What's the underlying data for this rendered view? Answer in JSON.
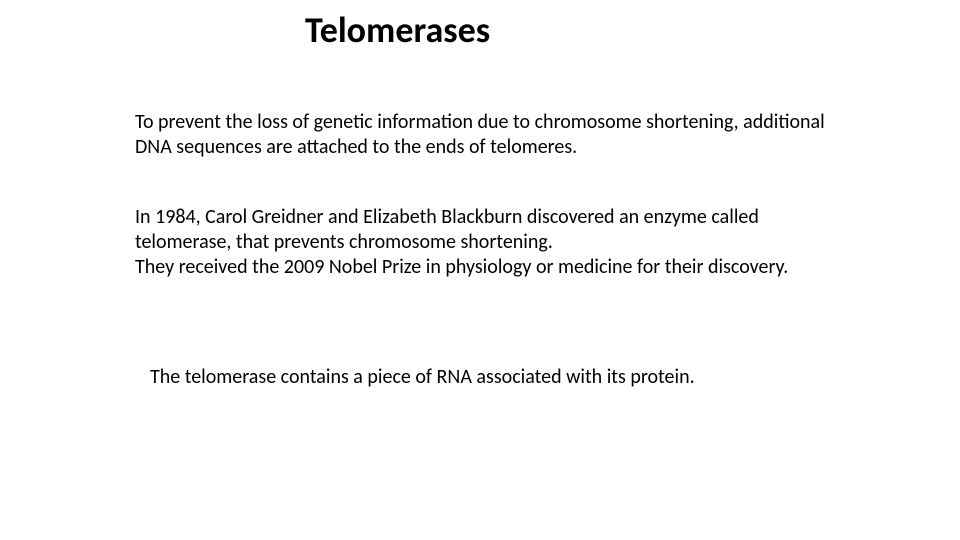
{
  "slide": {
    "title": "Telomerases",
    "para1": "To prevent the loss of genetic information due to chromosome shortening, additional DNA sequences are attached to the ends of telomeres.",
    "para2": "In 1984, Carol Greidner and Elizabeth Blackburn discovered an enzyme called telomerase, that prevents chromosome shortening.\nThey received the 2009 Nobel Prize in physiology or medicine for their discovery.",
    "para3": "The telomerase contains a piece of RNA associated with its protein.",
    "background_color": "#ffffff",
    "text_color": "#000000",
    "title_fontsize": 36,
    "body_fontsize": 20,
    "font_family": "Calibri"
  }
}
